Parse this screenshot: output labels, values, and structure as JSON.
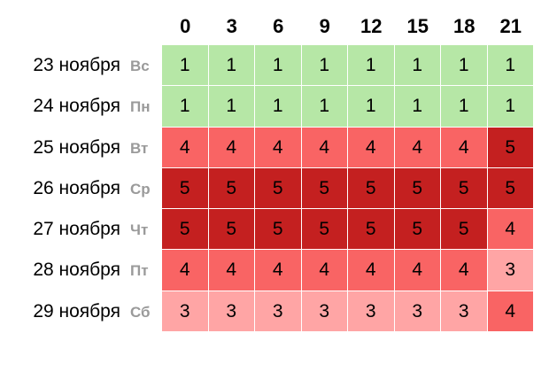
{
  "colors": {
    "level_1": "#b6e7a6",
    "level_3": "#ffa5a5",
    "level_4": "#f96464",
    "level_5": "#c42020",
    "weekday_text": "#9a9a9a"
  },
  "hours": [
    "0",
    "3",
    "6",
    "9",
    "12",
    "15",
    "18",
    "21"
  ],
  "rows": [
    {
      "date": "23 ноября",
      "weekday": "Вс",
      "values": [
        "1",
        "1",
        "1",
        "1",
        "1",
        "1",
        "1",
        "1"
      ]
    },
    {
      "date": "24 ноября",
      "weekday": "Пн",
      "values": [
        "1",
        "1",
        "1",
        "1",
        "1",
        "1",
        "1",
        "1"
      ]
    },
    {
      "date": "25 ноября",
      "weekday": "Вт",
      "values": [
        "4",
        "4",
        "4",
        "4",
        "4",
        "4",
        "4",
        "5"
      ]
    },
    {
      "date": "26 ноября",
      "weekday": "Ср",
      "values": [
        "5",
        "5",
        "5",
        "5",
        "5",
        "5",
        "5",
        "5"
      ]
    },
    {
      "date": "27 ноября",
      "weekday": "Чт",
      "values": [
        "5",
        "5",
        "5",
        "5",
        "5",
        "5",
        "5",
        "4"
      ]
    },
    {
      "date": "28 ноября",
      "weekday": "Пт",
      "values": [
        "4",
        "4",
        "4",
        "4",
        "4",
        "4",
        "4",
        "3"
      ]
    },
    {
      "date": "29 ноября",
      "weekday": "Сб",
      "values": [
        "3",
        "3",
        "3",
        "3",
        "3",
        "3",
        "3",
        "4"
      ]
    }
  ]
}
